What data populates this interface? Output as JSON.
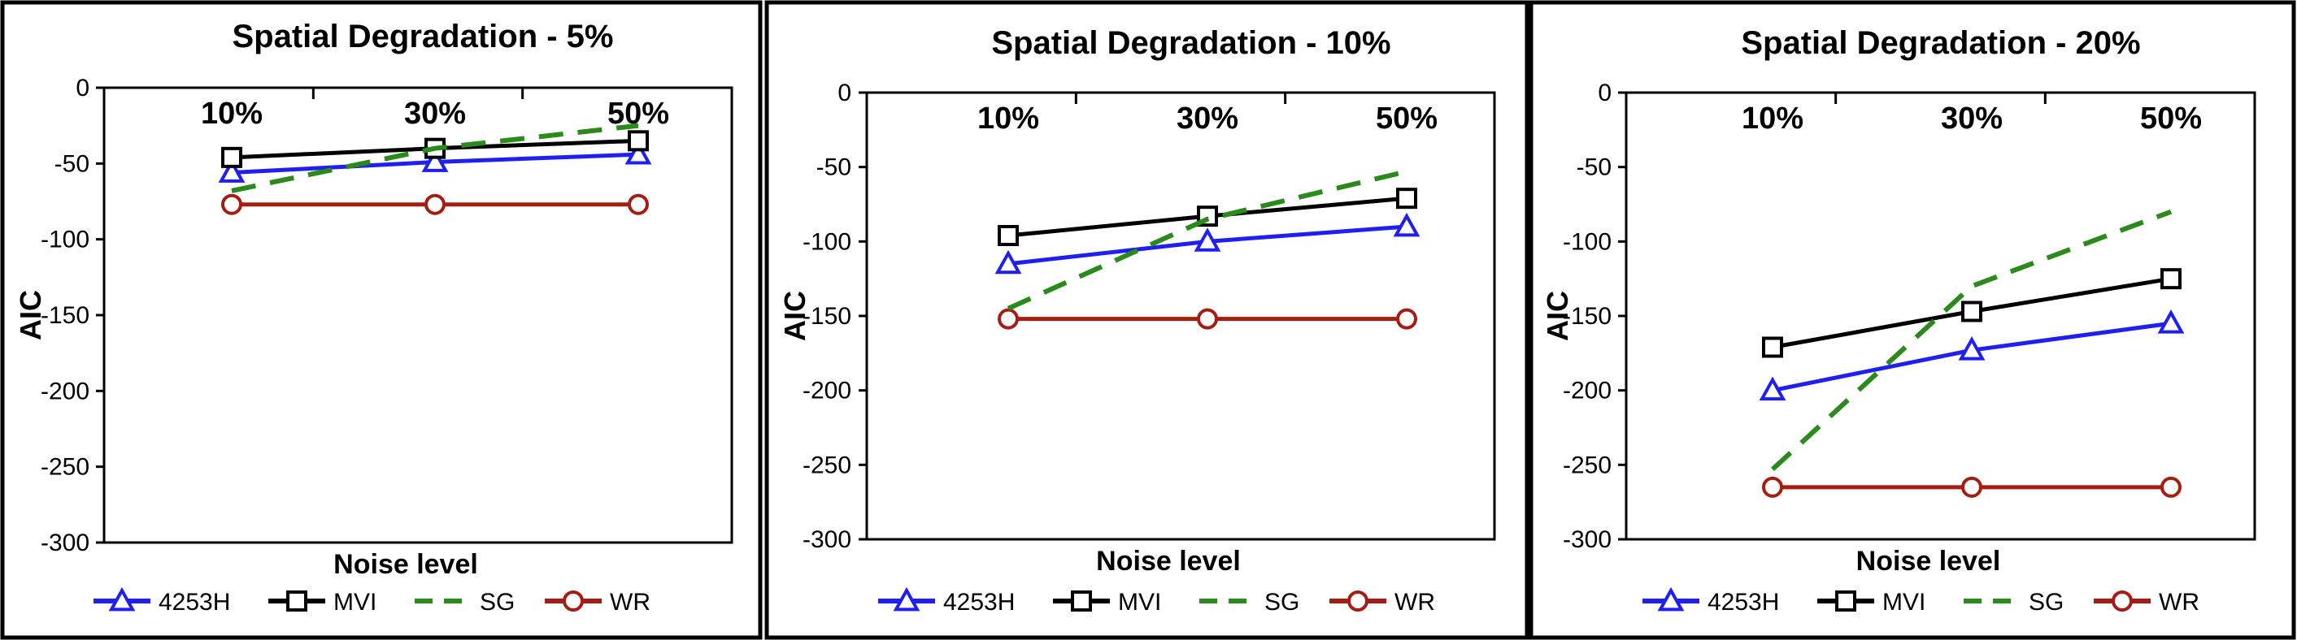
{
  "figure": {
    "colors": {
      "4253H": "#1f1ff0",
      "MVI": "#000000",
      "SG": "#2a8a1a",
      "WR": "#a51d12"
    }
  },
  "chart_data": [
    {
      "type": "line",
      "title": "Spatial Degradation - 5%",
      "xlabel": "Noise level",
      "ylabel": "AIC",
      "categories": [
        "10%",
        "30%",
        "50%"
      ],
      "ylim": [
        -300,
        0
      ],
      "yticks": [
        0,
        -50,
        -100,
        -150,
        -200,
        -250,
        -300
      ],
      "grid": false,
      "legend": "bottom",
      "series": [
        {
          "name": "4253H",
          "marker": "triangle",
          "style": "solid",
          "values": [
            -56,
            -49,
            -44
          ]
        },
        {
          "name": "MVI",
          "marker": "square",
          "style": "solid",
          "values": [
            -46,
            -40,
            -35
          ]
        },
        {
          "name": "SG",
          "marker": "none",
          "style": "dashed",
          "values": [
            -68,
            -40,
            -25
          ]
        },
        {
          "name": "WR",
          "marker": "circle",
          "style": "solid",
          "values": [
            -77,
            -77,
            -77
          ]
        }
      ]
    },
    {
      "type": "line",
      "title": "Spatial Degradation - 10%",
      "xlabel": "Noise level",
      "ylabel": "AIC",
      "categories": [
        "10%",
        "30%",
        "50%"
      ],
      "ylim": [
        -300,
        0
      ],
      "yticks": [
        0,
        -50,
        -100,
        -150,
        -200,
        -250,
        -300
      ],
      "grid": false,
      "legend": "bottom",
      "series": [
        {
          "name": "4253H",
          "marker": "triangle",
          "style": "solid",
          "values": [
            -115,
            -100,
            -90
          ]
        },
        {
          "name": "MVI",
          "marker": "square",
          "style": "solid",
          "values": [
            -96,
            -83,
            -71
          ]
        },
        {
          "name": "SG",
          "marker": "none",
          "style": "dashed",
          "values": [
            -145,
            -85,
            -53
          ]
        },
        {
          "name": "WR",
          "marker": "circle",
          "style": "solid",
          "values": [
            -152,
            -152,
            -152
          ]
        }
      ]
    },
    {
      "type": "line",
      "title": "Spatial Degradation - 20%",
      "xlabel": "Noise level",
      "ylabel": "AIC",
      "categories": [
        "10%",
        "30%",
        "50%"
      ],
      "ylim": [
        -300,
        0
      ],
      "yticks": [
        0,
        -50,
        -100,
        -150,
        -200,
        -250,
        -300
      ],
      "grid": false,
      "legend": "bottom",
      "series": [
        {
          "name": "4253H",
          "marker": "triangle",
          "style": "solid",
          "values": [
            -200,
            -173,
            -155
          ]
        },
        {
          "name": "MVI",
          "marker": "square",
          "style": "solid",
          "values": [
            -171,
            -147,
            -125
          ]
        },
        {
          "name": "SG",
          "marker": "none",
          "style": "dashed",
          "values": [
            -253,
            -130,
            -80
          ]
        },
        {
          "name": "WR",
          "marker": "circle",
          "style": "solid",
          "values": [
            -265,
            -265,
            -265
          ]
        }
      ]
    }
  ]
}
